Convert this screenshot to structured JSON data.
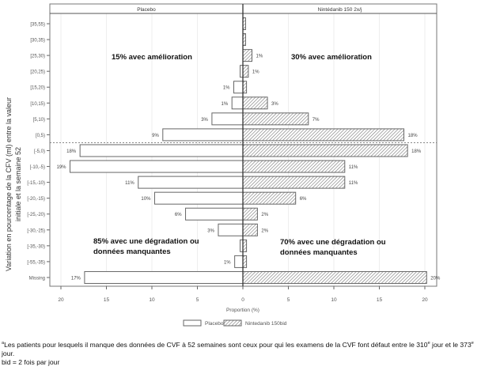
{
  "chart_data": {
    "type": "bar",
    "orientation": "horizontal-butterfly",
    "panels": [
      "Placebo",
      "Nintédanib 150 2x/j"
    ],
    "categories": [
      "[35,55)",
      "[30,35)",
      "[25,30)",
      "[20,25)",
      "[15,20)",
      "[10,15)",
      "[5,10)",
      "[0,5)",
      "[-5,0)",
      "[-10,-5)",
      "[-15,-10)",
      "[-20,-15)",
      "[-25,-20)",
      "[-30,-25)",
      "[-35,-30)",
      "[-55,-35)",
      "Missing"
    ],
    "series": [
      {
        "name": "Placebo",
        "fill": "none",
        "values": [
          0,
          0,
          0,
          0.3,
          1,
          1.2,
          3.4,
          8.8,
          17.9,
          19,
          11.5,
          9.7,
          6.3,
          2.7,
          0.3,
          0.9,
          17.4
        ],
        "labels": [
          "",
          "",
          "",
          "",
          "1%",
          "1%",
          "3%",
          "9%",
          "18%",
          "19%",
          "11%",
          "10%",
          "6%",
          "3%",
          "",
          "1%",
          "17%"
        ]
      },
      {
        "name": "Nintedanib 150bid",
        "fill": "hatched",
        "values": [
          0.3,
          0.3,
          1,
          0.6,
          0.4,
          2.7,
          7.2,
          17.7,
          18.1,
          11.2,
          11.2,
          5.8,
          1.6,
          1.6,
          0.4,
          0.4,
          20.2
        ],
        "labels": [
          "",
          "",
          "1%",
          "1%",
          "",
          "3%",
          "7%",
          "18%",
          "18%",
          "11%",
          "11%",
          "6%",
          "2%",
          "2%",
          "",
          "",
          "20%"
        ]
      }
    ],
    "xlabel": "Proportion (%)",
    "ylabel_lines": [
      "Variation en pourcentage de la CFV (ml) entre la valeur",
      "initiale et la semaine 52"
    ],
    "xticks_left": [
      "20",
      "15",
      "10",
      "5",
      "0"
    ],
    "xticks_right": [
      "0",
      "5",
      "10",
      "15",
      "20"
    ],
    "xtick_values": [
      20,
      15,
      10,
      5,
      0
    ],
    "xlim": [
      0,
      22
    ],
    "reference_line_between": [
      "[0,5)",
      "[-5,0)"
    ],
    "annotations": {
      "placebo_improve": "15% avec amélioration",
      "ninted_improve": "30% avec amélioration",
      "placebo_worse_1": "85% avec une dégradation ou",
      "placebo_worse_2": "données manquantes",
      "ninted_worse_1": "70% avec une dégradation ou",
      "ninted_worse_2": "données manquantes"
    },
    "legend": {
      "placement": "bottom",
      "items": [
        "Placebo",
        "Nintedanib 150bid"
      ]
    }
  },
  "footnote": {
    "marker": "a",
    "line1a": "Les patients pour lesquels il manque des données de CVF à 52 semaines sont ceux pour qui les examens de la CVF font défaut entre le 310",
    "sup1": "e",
    "line1b": " jour et le 373",
    "sup2": "e",
    "line1c": " jour.",
    "line2": "bid = 2 fois par jour"
  }
}
